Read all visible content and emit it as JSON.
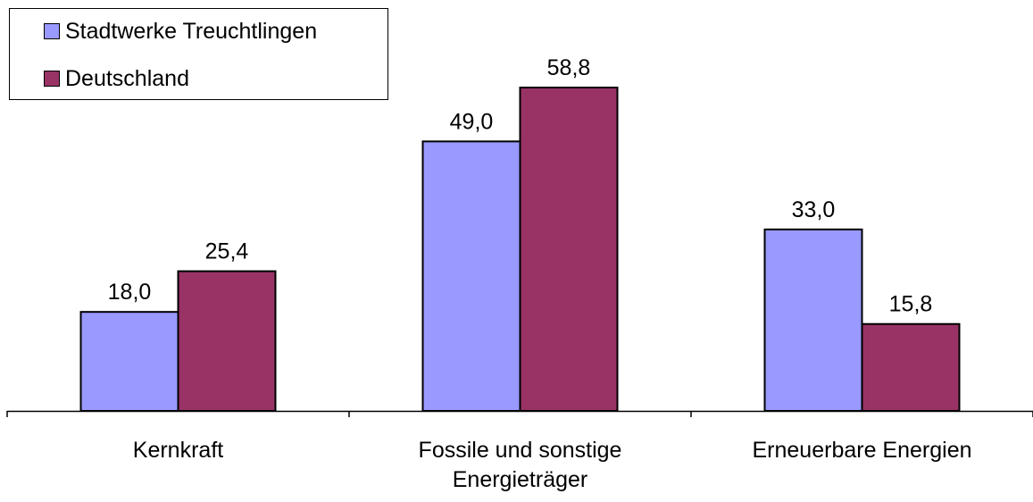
{
  "chart_data": {
    "type": "bar",
    "categories": [
      [
        "Kernkraft"
      ],
      [
        "Fossile und sonstige",
        "Energieträger"
      ],
      [
        "Erneuerbare Energien"
      ]
    ],
    "series": [
      {
        "name": "Stadtwerke Treuchtlingen",
        "values": [
          18.0,
          49.0,
          33.0
        ],
        "labels": [
          "18,0",
          "49,0",
          "33,0"
        ],
        "color": "#9999ff"
      },
      {
        "name": "Deutschland",
        "values": [
          25.4,
          58.8,
          15.8
        ],
        "labels": [
          "25,4",
          "58,8",
          "15,8"
        ],
        "color": "#993366"
      }
    ],
    "ylim": [
      0,
      70
    ],
    "grid": false,
    "legend_position": "top-left"
  }
}
